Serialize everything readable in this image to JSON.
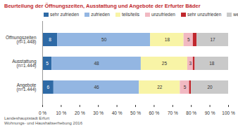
{
  "chart_data": {
    "type": "bar",
    "orientation": "horizontal",
    "stacked": true,
    "data_labels": true,
    "grid": false,
    "legend": "top",
    "title": "Beurteilung der Öffnungszeiten, Ausstattung und Angebote der Erfurter Bäder",
    "source": [
      "Landeshauptstadt Erfurt",
      "Wohnungs- und Haushaltserhebung 2016"
    ],
    "categories": [
      "Öffnungszeiten (n=1.448)",
      "Ausstattung (n=1.444)",
      "Angebote (n=1.444)"
    ],
    "series": [
      {
        "name": "sehr zufrieden",
        "color": "#2e6aa6",
        "values": [
          8,
          5,
          6
        ]
      },
      {
        "name": "zufrieden",
        "color": "#93b6e2",
        "values": [
          50,
          48,
          46
        ]
      },
      {
        "name": "teils/teils",
        "color": "#f8f4a6",
        "values": [
          18,
          25,
          22
        ]
      },
      {
        "name": "unzufrieden",
        "color": "#f1b9c2",
        "values": [
          5,
          3,
          5
        ]
      },
      {
        "name": "sehr unzufrieden",
        "color": "#c0272d",
        "values": [
          2,
          1,
          1
        ]
      },
      {
        "name": "weiß nicht",
        "color": "#c9c9c9",
        "values": [
          17,
          18,
          20
        ]
      }
    ],
    "xlim": [
      0,
      100
    ],
    "xticks": [
      {
        "value": 0,
        "label": "0 %"
      },
      {
        "value": 10,
        "label": "10 %"
      },
      {
        "value": 20,
        "label": "20 %"
      },
      {
        "value": 30,
        "label": "30 %"
      },
      {
        "value": 40,
        "label": "40 %"
      },
      {
        "value": 50,
        "label": "50 %"
      },
      {
        "value": 60,
        "label": "60 %"
      },
      {
        "value": 70,
        "label": "70 %"
      },
      {
        "value": 80,
        "label": "80 %"
      },
      {
        "value": 90,
        "label": "90 %"
      },
      {
        "value": 100,
        "label": "100 %"
      }
    ]
  }
}
